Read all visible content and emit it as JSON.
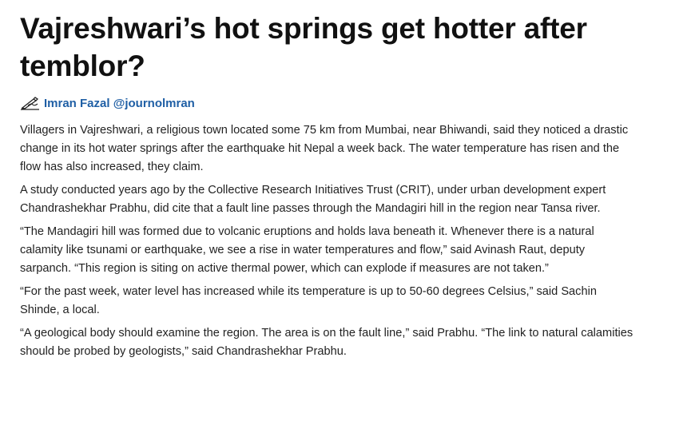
{
  "article": {
    "headline": "Vajreshwari’s hot springs get hotter after temblor?",
    "byline": {
      "icon": "pen-writing-icon",
      "author": "Imran Fazal @journolmran",
      "link_color": "#1f5fa5"
    },
    "paragraphs": [
      "Villagers in Vajreshwari, a religious town located some 75 km from Mumbai, near Bhiwandi, said they noticed a drastic change in its hot water springs after the earthquake hit Nepal a week back. The water temperature has risen and the flow has also increased, they claim.",
      "A study conducted years ago by the Collective Research Initiatives Trust (CRIT), under urban development expert Chandrashekhar Prabhu, did cite that a fault line passes through the Mandagiri hill in the region near Tansa river.",
      "“The Mandagiri hill was formed due to volcanic eruptions and holds lava beneath it. Whenever there is a natural calamity like tsunami or earthquake, we see a rise in water temperatures and flow,” said Avinash Raut, deputy sarpanch. “This region is siting on active thermal power, which can explode if measures are not taken.”",
      "“For the past week, water level has increased while its temperature is up to 50-60 degrees Celsius,” said Sachin Shinde, a local.",
      "“A geological body should examine the region. The area is on the fault line,” said Prabhu. “The link to natural calamities should be probed by geologists,” said Chandrashekhar Prabhu."
    ]
  }
}
